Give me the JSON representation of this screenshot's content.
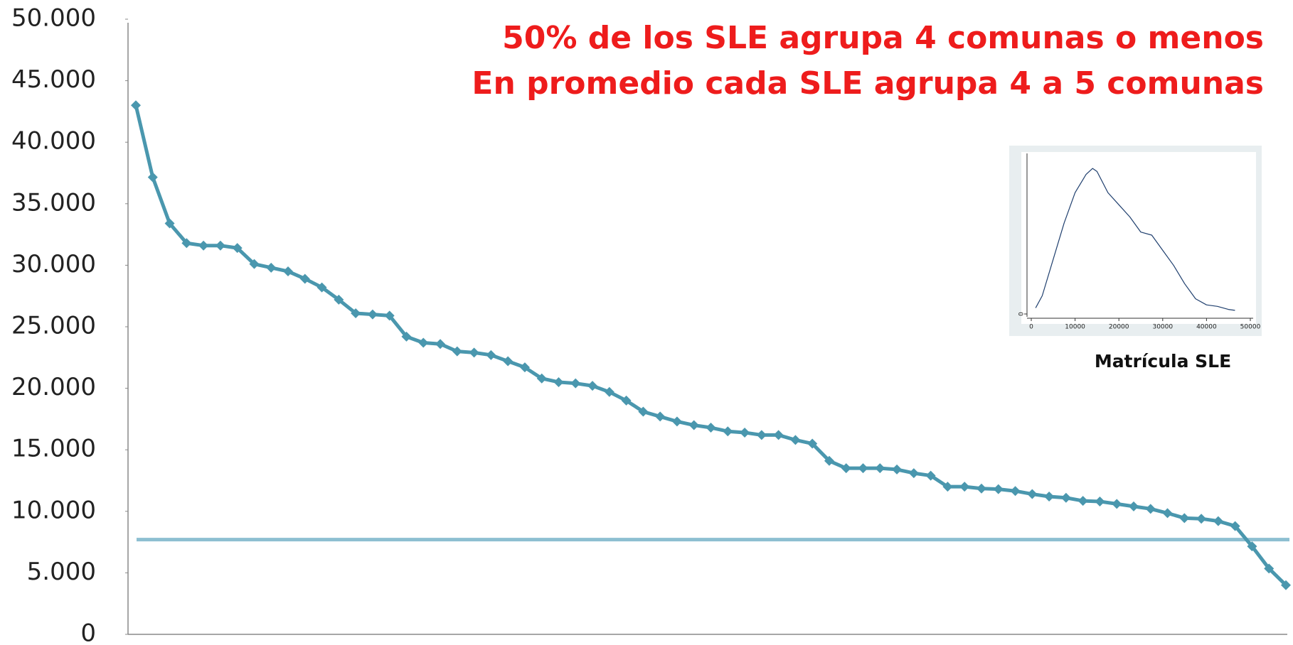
{
  "chart_data": [
    {
      "type": "line",
      "annotations": [
        "50% de los SLE agrupa 4 comunas o menos",
        "En promedio cada SLE agrupa 4 a 5 comunas"
      ],
      "series": [
        {
          "color": "#4a97ae",
          "values": [
            43000,
            37150,
            33400,
            31800,
            31600,
            31600,
            31400,
            30100,
            29800,
            29500,
            28900,
            28200,
            27200,
            26100,
            26000,
            25900,
            24200,
            23700,
            23600,
            23000,
            22900,
            22700,
            22200,
            21700,
            20800,
            20500,
            20400,
            20200,
            19700,
            19000,
            18100,
            17700,
            17300,
            17000,
            16800,
            16500,
            16400,
            16200,
            16200,
            15800,
            15500,
            14100,
            13500,
            13500,
            13500,
            13400,
            13100,
            12900,
            12000,
            12000,
            11850,
            11800,
            11650,
            11400,
            11200,
            11100,
            10850,
            10800,
            10600,
            10400,
            10200,
            9850,
            9450,
            9400,
            9200,
            8800,
            7150,
            5350,
            4000
          ]
        }
      ],
      "reference_line": {
        "value": 7700,
        "color": "#8dbfd1"
      },
      "ylim": [
        0,
        50000
      ],
      "yticks": [
        0,
        {
          "value": 5000,
          "label": "5.000"
        },
        {
          "value": 10000,
          "label": "10.000"
        },
        {
          "value": 15000,
          "label": "15.000"
        },
        {
          "value": 20000,
          "label": "20.000"
        },
        {
          "value": 25000,
          "label": "25.000"
        },
        {
          "value": 30000,
          "label": "30.000"
        },
        {
          "value": 35000,
          "label": "35.000"
        },
        {
          "value": 40000,
          "label": "40.000"
        },
        {
          "value": 45000,
          "label": "45.000"
        },
        {
          "value": 50000,
          "label": "50.000"
        }
      ]
    },
    {
      "type": "line",
      "title": "Matrícula SLE",
      "x": [
        1000,
        2500,
        5000,
        7500,
        10000,
        12500,
        14000,
        15000,
        17500,
        20000,
        22500,
        25000,
        27500,
        30000,
        32500,
        35000,
        37500,
        40000,
        42500,
        45000,
        46500
      ],
      "series": [
        {
          "color": "#1f3f6e",
          "values": [
            0.2,
            0.6,
            1.8,
            3.0,
            4.0,
            4.6,
            4.8,
            4.7,
            4.0,
            3.6,
            3.2,
            2.7,
            2.6,
            2.1,
            1.6,
            1.0,
            0.5,
            0.3,
            0.25,
            0.15,
            0.12
          ]
        }
      ],
      "xlim": [
        0,
        50000
      ],
      "xticks": [
        0,
        10000,
        20000,
        30000,
        40000,
        50000
      ],
      "ylim": [
        0,
        5.2
      ],
      "yticks": [
        0
      ]
    }
  ]
}
